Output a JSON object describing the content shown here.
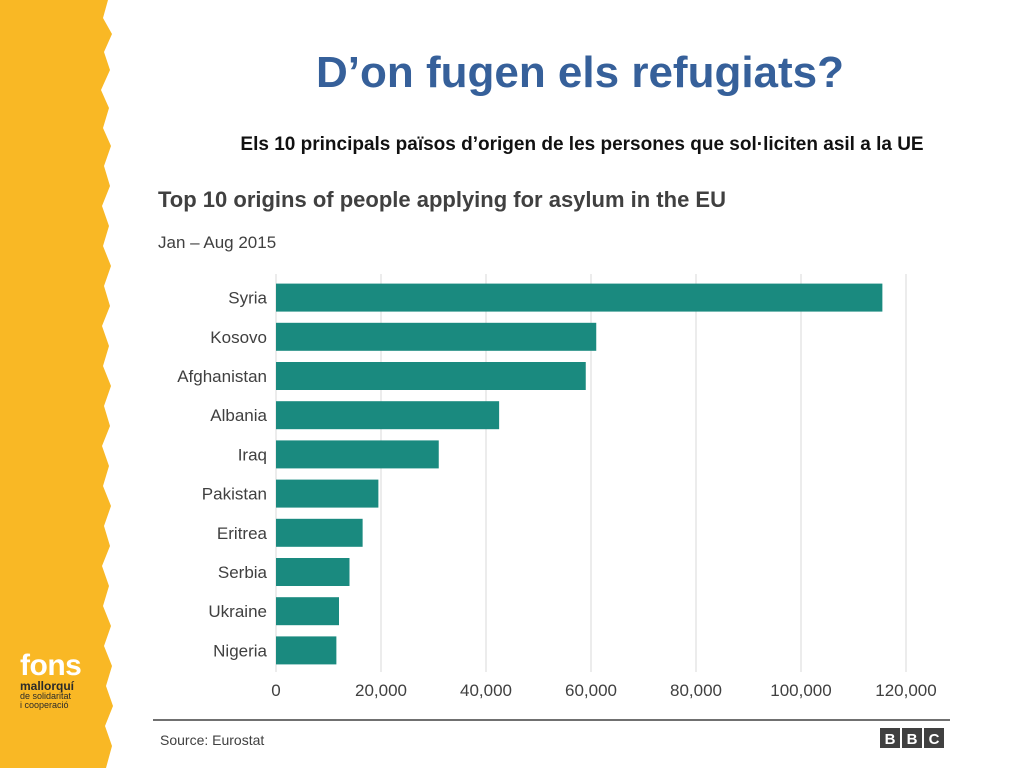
{
  "slide": {
    "title": "D’on fugen els refugiats?",
    "subtitle": "Els 10 principals països d’origen de les persones que sol·liciten asil a la UE"
  },
  "logo": {
    "line1": "fons",
    "line2": "mallorquí",
    "line3": "de solidaritat",
    "line4": "i cooperació"
  },
  "colors": {
    "stripe": "#f9b825",
    "bar": "#1a8a7f",
    "title": "#36609a"
  },
  "chart_data": {
    "type": "bar",
    "orientation": "horizontal",
    "title": "Top 10 origins of people applying for asylum in the EU",
    "subtitle": "Jan – Aug 2015",
    "categories": [
      "Syria",
      "Kosovo",
      "Afghanistan",
      "Albania",
      "Iraq",
      "Pakistan",
      "Eritrea",
      "Serbia",
      "Ukraine",
      "Nigeria"
    ],
    "values": [
      115500,
      61000,
      59000,
      42500,
      31000,
      19500,
      16500,
      14000,
      12000,
      11500
    ],
    "xlim": [
      0,
      120000
    ],
    "xticks": [
      "0",
      "20,000",
      "40,000",
      "60,000",
      "80,000",
      "100,000",
      "120,000"
    ],
    "grid": true,
    "source": "Source: Eurostat",
    "brand": [
      "B",
      "B",
      "C"
    ]
  }
}
